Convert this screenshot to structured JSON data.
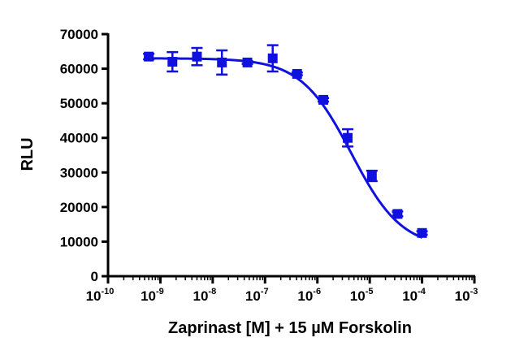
{
  "chart_data": {
    "type": "scatter",
    "title": "",
    "xlabel": "Zaprinast [M] + 15 µM Forskolin",
    "ylabel": "RLU",
    "xscale": "log",
    "xlim": [
      1e-10,
      0.001
    ],
    "ylim": [
      0,
      70000
    ],
    "x_tick_labels": [
      {
        "base": "10",
        "exp": "-10"
      },
      {
        "base": "10",
        "exp": "-9"
      },
      {
        "base": "10",
        "exp": "-8"
      },
      {
        "base": "10",
        "exp": "-7"
      },
      {
        "base": "10",
        "exp": "-6"
      },
      {
        "base": "10",
        "exp": "-5"
      },
      {
        "base": "10",
        "exp": "-4"
      },
      {
        "base": "10",
        "exp": "-3"
      }
    ],
    "y_tick_labels": [
      "0",
      "10000",
      "20000",
      "30000",
      "40000",
      "50000",
      "60000",
      "70000"
    ],
    "legend": "none",
    "grid": false,
    "colors": {
      "series": "#1010e0",
      "axis": "#000000"
    },
    "series": [
      {
        "marker": "square",
        "points": [
          {
            "x": 6e-10,
            "y": 63500,
            "err": 800
          },
          {
            "x": 1.7e-09,
            "y": 62000,
            "err": 2800
          },
          {
            "x": 5e-09,
            "y": 63500,
            "err": 2500
          },
          {
            "x": 1.5e-08,
            "y": 61800,
            "err": 3500
          },
          {
            "x": 4.6e-08,
            "y": 61800,
            "err": 400
          },
          {
            "x": 1.4e-07,
            "y": 63000,
            "err": 3800
          },
          {
            "x": 4.1e-07,
            "y": 58500,
            "err": 400
          },
          {
            "x": 1.3e-06,
            "y": 51000,
            "err": 500
          },
          {
            "x": 3.8e-06,
            "y": 40000,
            "err": 2500
          },
          {
            "x": 1.1e-05,
            "y": 29000,
            "err": 1500
          },
          {
            "x": 3.4e-05,
            "y": 18000,
            "err": 700
          },
          {
            "x": 0.0001,
            "y": 12500,
            "err": 500
          }
        ],
        "fit": {
          "model": "4PL",
          "top": 63000,
          "bottom": 8000,
          "logEC50": -5.35,
          "hill": -0.9
        }
      }
    ]
  }
}
